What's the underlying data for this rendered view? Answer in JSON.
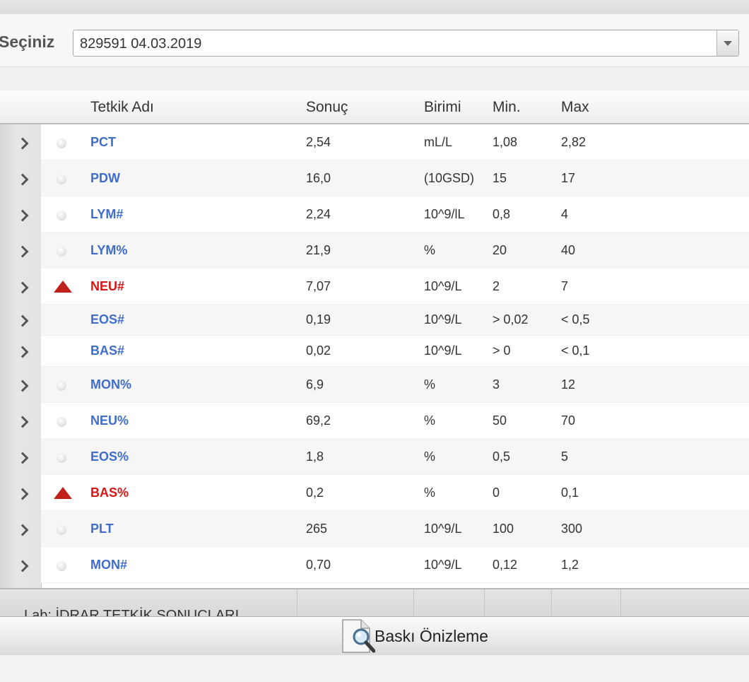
{
  "selector": {
    "label": "Seçiniz",
    "value": "829591 04.03.2019"
  },
  "columns": {
    "name": "Tetkik Adı",
    "result": "Sonuç",
    "unit": "Birimi",
    "min": "Min.",
    "max": "Max"
  },
  "rows": [
    {
      "name": "PCT",
      "result": "2,54",
      "unit": "mL/L",
      "min": "1,08",
      "max": "2,82",
      "status": "normal"
    },
    {
      "name": "PDW",
      "result": "16,0",
      "unit": "(10GSD)",
      "min": "15",
      "max": "17",
      "status": "normal"
    },
    {
      "name": "LYM#",
      "result": "2,24",
      "unit": "10^9/lL",
      "min": "0,8",
      "max": "4",
      "status": "normal"
    },
    {
      "name": "LYM%",
      "result": "21,9",
      "unit": "%",
      "min": "20",
      "max": "40",
      "status": "normal"
    },
    {
      "name": "NEU#",
      "result": "7,07",
      "unit": "10^9/L",
      "min": "2",
      "max": "7",
      "status": "high"
    },
    {
      "name": "EOS#",
      "result": "0,19",
      "unit": "10^9/L",
      "min": "> 0,02",
      "max": "< 0,5",
      "status": "none"
    },
    {
      "name": "BAS#",
      "result": "0,02",
      "unit": "10^9/L",
      "min": "> 0",
      "max": "< 0,1",
      "status": "none"
    },
    {
      "name": "MON%",
      "result": "6,9",
      "unit": "%",
      "min": "3",
      "max": "12",
      "status": "normal"
    },
    {
      "name": "NEU%",
      "result": "69,2",
      "unit": "%",
      "min": "50",
      "max": "70",
      "status": "normal"
    },
    {
      "name": "EOS%",
      "result": "1,8",
      "unit": "%",
      "min": "0,5",
      "max": "5",
      "status": "normal"
    },
    {
      "name": "BAS%",
      "result": "0,2",
      "unit": "%",
      "min": "0",
      "max": "0,1",
      "status": "high"
    },
    {
      "name": "PLT",
      "result": "265",
      "unit": "10^9/L",
      "min": "100",
      "max": "300",
      "status": "normal"
    },
    {
      "name": "MON#",
      "result": "0,70",
      "unit": "10^9/L",
      "min": "0,12",
      "max": "1,2",
      "status": "normal"
    }
  ],
  "footer": {
    "lab_group": "Lab: İDRAR TETKİK SONUÇLARI"
  },
  "print_button": {
    "label": "Baskı Önizleme",
    "icon": "magnifier-page-icon"
  },
  "colors": {
    "name_normal": "#3f6dc9",
    "name_high": "#d81414",
    "high_arrow": "#c0211b"
  }
}
